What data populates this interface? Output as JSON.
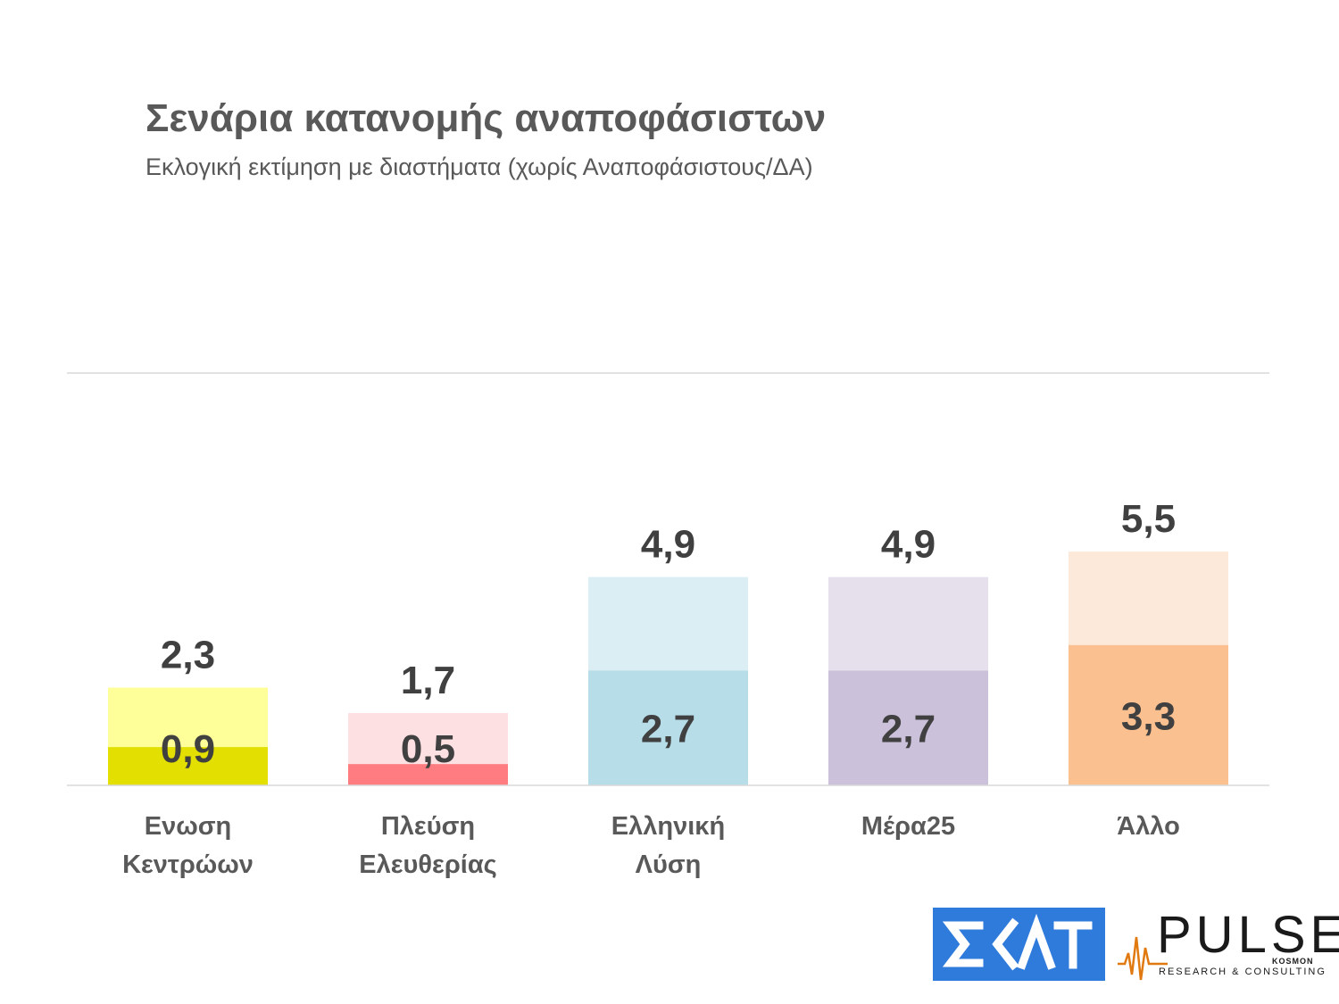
{
  "title": "Σενάρια κατανομής αναποφάσιστων",
  "subtitle": "Εκλογική εκτίμηση με διαστήματα (χωρίς Αναποφάσιστους/ΔΑ)",
  "chart_data": {
    "type": "bar",
    "categories": [
      [
        "Ενωση",
        "Κεντρώων"
      ],
      [
        "Πλεύση",
        "Ελευθερίας"
      ],
      [
        "Ελληνική",
        "Λύση"
      ],
      [
        "Μέρα25"
      ],
      [
        "Άλλο"
      ]
    ],
    "low_labels": [
      "0,9",
      "0,5",
      "2,7",
      "2,7",
      "3,3"
    ],
    "high_labels": [
      "2,3",
      "1,7",
      "4,9",
      "4,9",
      "5,5"
    ],
    "low_values": [
      0.9,
      0.5,
      2.7,
      2.7,
      3.3
    ],
    "high_values": [
      2.3,
      1.7,
      4.9,
      4.9,
      5.5
    ],
    "colors": {
      "low": [
        "#e3df00",
        "#ff7c80",
        "#b6dde8",
        "#ccc1da",
        "#fac090"
      ],
      "high": [
        "#ffff99",
        "#fde0e2",
        "#dbeef4",
        "#e5e0ec",
        "#fde9d9"
      ]
    },
    "ylim": [
      0,
      9.7
    ],
    "grid": false,
    "legend": "none"
  },
  "logos": {
    "skai": "ΣΚΑΪ",
    "pulse": "PULSE",
    "pulse_kosmon": "KOSMON",
    "pulse_tagline": "RESEARCH & CONSULTING"
  }
}
